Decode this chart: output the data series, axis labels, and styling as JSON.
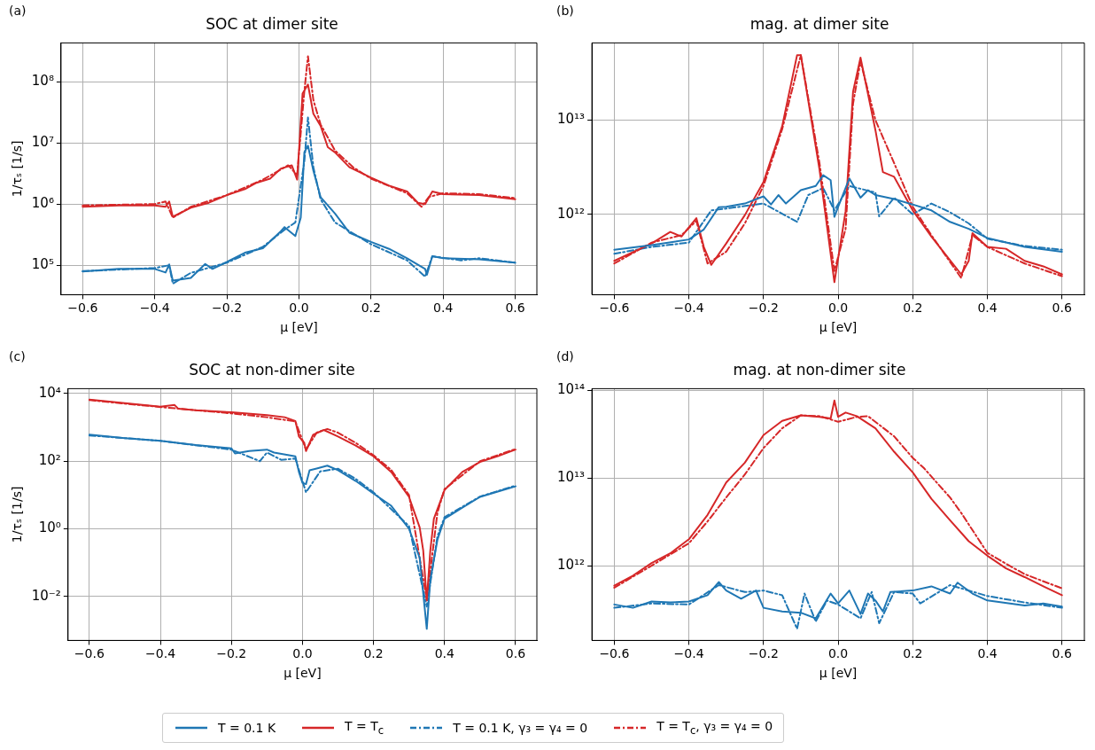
{
  "chart_data": [
    {
      "type": "line",
      "title": "SOC at dimer site",
      "xlabel": "μ [eV]",
      "ylabel": "1/τₛ [1/s]",
      "annotations": [
        "(a)"
      ],
      "log": "y",
      "grid": true,
      "legend": "bottom",
      "xlim": [
        -0.66,
        0.66
      ],
      "xticks": [
        {
          "value": -0.6,
          "label": "−0.6"
        },
        {
          "value": -0.4,
          "label": "−0.4"
        },
        {
          "value": -0.2,
          "label": "−0.2"
        },
        {
          "value": 0,
          "label": "0.0"
        },
        {
          "value": 0.2,
          "label": "0.2"
        },
        {
          "value": 0.4,
          "label": "0.4"
        },
        {
          "value": 0.6,
          "label": "0.6"
        }
      ],
      "ylim": [
        33000,
        430000000
      ],
      "yticks": [
        {
          "value": 100000,
          "label": "10⁵"
        },
        {
          "value": 1000000,
          "label": "10⁶"
        },
        {
          "value": 10000000,
          "label": "10⁷"
        },
        {
          "value": 100000000,
          "label": "10⁸"
        }
      ],
      "series": [
        {
          "name": "T = 0.1 K",
          "color": "#1f77b4",
          "line_style": "solid",
          "x": [
            -0.6,
            -0.5,
            -0.4,
            -0.37,
            -0.36,
            -0.35,
            -0.3,
            -0.26,
            -0.24,
            -0.2,
            -0.15,
            -0.1,
            -0.05,
            -0.04,
            -0.01,
            0.005,
            0.015,
            0.025,
            0.04,
            0.06,
            0.1,
            0.14,
            0.2,
            0.25,
            0.3,
            0.35,
            0.355,
            0.37,
            0.4,
            0.5,
            0.6
          ],
          "values": [
            79000,
            87000,
            87000,
            76000,
            103000,
            56000,
            62000,
            105000,
            87000,
            113000,
            160000,
            190000,
            360000,
            420000,
            300000,
            600000,
            7000000,
            9000000,
            3500000,
            1300000,
            700000,
            340000,
            240000,
            185000,
            130000,
            87000,
            70000,
            140000,
            130000,
            125000,
            110000
          ]
        },
        {
          "name": "T = T$_{c}$",
          "color": "#d62728",
          "line_style": "solid",
          "x": [
            -0.6,
            -0.5,
            -0.4,
            -0.37,
            -0.36,
            -0.35,
            -0.3,
            -0.25,
            -0.2,
            -0.15,
            -0.12,
            -0.08,
            -0.05,
            -0.02,
            -0.005,
            0.01,
            0.025,
            0.04,
            0.06,
            0.08,
            0.1,
            0.14,
            0.2,
            0.25,
            0.3,
            0.33,
            0.35,
            0.37,
            0.4,
            0.5,
            0.6
          ],
          "values": [
            900000,
            950000,
            950000,
            900000,
            1100000,
            620000,
            870000,
            1050000,
            1400000,
            1750000,
            2200000,
            2600000,
            3800000,
            4300000,
            2500000,
            64000000,
            90000000,
            30000000,
            19000000,
            8500000,
            7000000,
            4000000,
            2700000,
            2000000,
            1600000,
            1050000,
            1000000,
            1600000,
            1450000,
            1400000,
            1200000
          ]
        },
        {
          "name": "T = 0.1 K, γ₃ = γ₄ = 0",
          "color": "#1f77b4",
          "line_style": "dashdot",
          "x": [
            -0.6,
            -0.4,
            -0.36,
            -0.35,
            -0.3,
            -0.2,
            -0.1,
            -0.04,
            -0.01,
            0.015,
            0.025,
            0.04,
            0.06,
            0.1,
            0.2,
            0.3,
            0.35,
            0.37,
            0.45,
            0.5,
            0.6
          ],
          "values": [
            80000,
            90000,
            100000,
            50000,
            75000,
            110000,
            200000,
            380000,
            500000,
            5000000,
            26000000,
            4000000,
            1200000,
            500000,
            220000,
            120000,
            65000,
            140000,
            120000,
            130000,
            110000
          ]
        },
        {
          "name": "T = T$_{c}$, γ₃ = γ₄ = 0",
          "color": "#d62728",
          "line_style": "dashdot",
          "x": [
            -0.6,
            -0.4,
            -0.37,
            -0.35,
            -0.3,
            -0.2,
            -0.1,
            -0.03,
            -0.005,
            0.015,
            0.025,
            0.04,
            0.06,
            0.1,
            0.15,
            0.2,
            0.3,
            0.34,
            0.36,
            0.4,
            0.5,
            0.6
          ],
          "values": [
            950000,
            1000000,
            1100000,
            600000,
            900000,
            1400000,
            2500000,
            4300000,
            3000000,
            70000000,
            260000000,
            50000000,
            20000000,
            7500000,
            4000000,
            2600000,
            1500000,
            900000,
            1300000,
            1500000,
            1450000,
            1250000
          ]
        }
      ]
    },
    {
      "type": "line",
      "title": "mag. at dimer site",
      "xlabel": "μ [eV]",
      "annotations": [
        "(b)"
      ],
      "log": "y",
      "grid": true,
      "xlim": [
        -0.66,
        0.66
      ],
      "xticks": [
        {
          "value": -0.6,
          "label": "−0.6"
        },
        {
          "value": -0.4,
          "label": "−0.4"
        },
        {
          "value": -0.2,
          "label": "−0.2"
        },
        {
          "value": 0,
          "label": "0.0"
        },
        {
          "value": 0.2,
          "label": "0.2"
        },
        {
          "value": 0.4,
          "label": "0.4"
        },
        {
          "value": 0.6,
          "label": "0.6"
        }
      ],
      "ylim": [
        140000000000,
        66000000000000
      ],
      "yticks": [
        {
          "value": 1000000000000,
          "label": "10¹²"
        },
        {
          "value": 10000000000000,
          "label": "10¹³"
        }
      ],
      "series": [
        {
          "color": "#1f77b4",
          "line_style": "solid",
          "x": [
            -0.6,
            -0.5,
            -0.4,
            -0.36,
            -0.32,
            -0.3,
            -0.25,
            -0.2,
            -0.18,
            -0.16,
            -0.14,
            -0.1,
            -0.06,
            -0.04,
            -0.02,
            -0.01,
            0.0,
            0.03,
            0.06,
            0.08,
            0.1,
            0.15,
            0.2,
            0.25,
            0.3,
            0.35,
            0.4,
            0.5,
            0.6
          ],
          "values": [
            420000000000,
            470000000000,
            540000000000,
            690000000000,
            1190000000000,
            1200000000000,
            1300000000000,
            1550000000000,
            1270000000000,
            1600000000000,
            1300000000000,
            1800000000000,
            2000000000000,
            2600000000000,
            2300000000000,
            940000000000,
            1200000000000,
            2400000000000,
            1500000000000,
            1800000000000,
            1600000000000,
            1450000000000,
            1270000000000,
            1100000000000,
            830000000000,
            700000000000,
            560000000000,
            450000000000,
            400000000000
          ]
        },
        {
          "color": "#d62728",
          "line_style": "solid",
          "x": [
            -0.6,
            -0.5,
            -0.45,
            -0.42,
            -0.38,
            -0.36,
            -0.34,
            -0.3,
            -0.25,
            -0.2,
            -0.15,
            -0.11,
            -0.1,
            -0.05,
            -0.01,
            0.02,
            0.04,
            0.06,
            0.1,
            0.12,
            0.15,
            0.2,
            0.25,
            0.33,
            0.35,
            0.36,
            0.4,
            0.45,
            0.5,
            0.55,
            0.6
          ],
          "values": [
            320000000000,
            490000000000,
            650000000000,
            580000000000,
            910000000000,
            450000000000,
            290000000000,
            490000000000,
            980000000000,
            2200000000000,
            8600000000000,
            49000000000000,
            49000000000000,
            3000000000000,
            190000000000,
            1080000000000,
            20000000000000,
            46000000000000,
            7800000000000,
            2800000000000,
            2500000000000,
            1100000000000,
            580000000000,
            230000000000,
            320000000000,
            630000000000,
            450000000000,
            430000000000,
            320000000000,
            280000000000,
            230000000000
          ]
        },
        {
          "color": "#1f77b4",
          "line_style": "dashdot",
          "x": [
            -0.6,
            -0.5,
            -0.4,
            -0.34,
            -0.3,
            -0.2,
            -0.11,
            -0.08,
            -0.04,
            -0.01,
            0.03,
            0.1,
            0.11,
            0.15,
            0.2,
            0.25,
            0.3,
            0.35,
            0.4,
            0.5,
            0.6
          ],
          "values": [
            380000000000,
            450000000000,
            500000000000,
            1100000000000,
            1150000000000,
            1300000000000,
            830000000000,
            1600000000000,
            1900000000000,
            1100000000000,
            2000000000000,
            1700000000000,
            950000000000,
            1500000000000,
            1000000000000,
            1300000000000,
            1050000000000,
            800000000000,
            550000000000,
            460000000000,
            420000000000
          ]
        },
        {
          "color": "#d62728",
          "line_style": "dashdot",
          "x": [
            -0.6,
            -0.5,
            -0.42,
            -0.38,
            -0.35,
            -0.3,
            -0.25,
            -0.2,
            -0.15,
            -0.1,
            -0.05,
            -0.01,
            0.02,
            0.04,
            0.06,
            0.1,
            0.15,
            0.2,
            0.25,
            0.33,
            0.36,
            0.4,
            0.5,
            0.6
          ],
          "values": [
            300000000000,
            500000000000,
            600000000000,
            850000000000,
            300000000000,
            400000000000,
            800000000000,
            2000000000000,
            8000000000000,
            49000000000000,
            3500000000000,
            250000000000,
            700000000000,
            15000000000000,
            42000000000000,
            10000000000000,
            3500000000000,
            1200000000000,
            600000000000,
            210000000000,
            600000000000,
            450000000000,
            300000000000,
            220000000000
          ]
        }
      ]
    },
    {
      "type": "line",
      "title": "SOC at non-dimer site",
      "xlabel": "μ [eV]",
      "ylabel": "1/τₛ [1/s]",
      "annotations": [
        "(c)"
      ],
      "log": "y",
      "grid": true,
      "xlim": [
        -0.66,
        0.66
      ],
      "xticks": [
        {
          "value": -0.6,
          "label": "−0.6"
        },
        {
          "value": -0.4,
          "label": "−0.4"
        },
        {
          "value": -0.2,
          "label": "−0.2"
        },
        {
          "value": 0,
          "label": "0.0"
        },
        {
          "value": 0.2,
          "label": "0.2"
        },
        {
          "value": 0.4,
          "label": "0.4"
        },
        {
          "value": 0.6,
          "label": "0.6"
        }
      ],
      "ylim": [
        0.0005,
        14000
      ],
      "yticks": [
        {
          "value": 0.01,
          "label": "10⁻²"
        },
        {
          "value": 1,
          "label": "10⁰"
        },
        {
          "value": 100,
          "label": "10²"
        },
        {
          "value": 10000,
          "label": "10⁴"
        }
      ],
      "series": [
        {
          "color": "#1f77b4",
          "line_style": "solid",
          "x": [
            -0.6,
            -0.5,
            -0.4,
            -0.3,
            -0.2,
            -0.19,
            -0.15,
            -0.1,
            -0.08,
            -0.02,
            -0.01,
            0.0,
            0.01,
            0.02,
            0.04,
            0.07,
            0.1,
            0.15,
            0.2,
            0.25,
            0.3,
            0.33,
            0.35,
            0.36,
            0.38,
            0.4,
            0.45,
            0.5,
            0.55,
            0.6
          ],
          "values": [
            610,
            480,
            400,
            300,
            240,
            170,
            200,
            220,
            180,
            140,
            48,
            23,
            21,
            54,
            61,
            74,
            54,
            26,
            11,
            4.8,
            1.0,
            0.14,
            0.0011,
            0.032,
            0.47,
            2.0,
            4.2,
            8.8,
            12.6,
            18
          ]
        },
        {
          "color": "#d62728",
          "line_style": "solid",
          "x": [
            -0.6,
            -0.5,
            -0.4,
            -0.36,
            -0.35,
            -0.3,
            -0.2,
            -0.1,
            -0.05,
            -0.02,
            -0.01,
            0.005,
            0.01,
            0.03,
            0.06,
            0.1,
            0.15,
            0.2,
            0.25,
            0.3,
            0.33,
            0.34,
            0.35,
            0.36,
            0.37,
            0.4,
            0.45,
            0.5,
            0.55,
            0.6
          ],
          "values": [
            6600,
            5200,
            4100,
            4600,
            3600,
            3200,
            2800,
            2300,
            2000,
            1550,
            540,
            350,
            200,
            610,
            840,
            540,
            290,
            140,
            48,
            8.8,
            1.1,
            0.23,
            0.0076,
            0.23,
            2.0,
            14,
            48,
            95,
            140,
            220
          ]
        },
        {
          "color": "#1f77b4",
          "line_style": "dashdot",
          "x": [
            -0.6,
            -0.4,
            -0.2,
            -0.12,
            -0.1,
            -0.06,
            -0.02,
            0.01,
            0.05,
            0.1,
            0.15,
            0.2,
            0.3,
            0.35,
            0.38,
            0.4,
            0.5,
            0.6
          ],
          "values": [
            580,
            400,
            220,
            100,
            180,
            110,
            120,
            12,
            50,
            60,
            30,
            12,
            1.2,
            0.005,
            0.6,
            2.2,
            9,
            19
          ]
        },
        {
          "color": "#d62728",
          "line_style": "dashdot",
          "x": [
            -0.6,
            -0.4,
            -0.2,
            -0.1,
            -0.02,
            0.01,
            0.04,
            0.07,
            0.1,
            0.15,
            0.2,
            0.25,
            0.3,
            0.35,
            0.38,
            0.4,
            0.5,
            0.6
          ],
          "values": [
            6400,
            4000,
            2600,
            2000,
            1500,
            220,
            700,
            900,
            700,
            350,
            150,
            55,
            10,
            0.008,
            3,
            15,
            100,
            230
          ]
        }
      ]
    },
    {
      "type": "line",
      "title": "mag. at non-dimer site",
      "xlabel": "μ [eV]",
      "annotations": [
        "(d)"
      ],
      "log": "y",
      "grid": true,
      "xlim": [
        -0.66,
        0.66
      ],
      "xticks": [
        {
          "value": -0.6,
          "label": "−0.6"
        },
        {
          "value": -0.4,
          "label": "−0.4"
        },
        {
          "value": -0.2,
          "label": "−0.2"
        },
        {
          "value": 0,
          "label": "0.0"
        },
        {
          "value": 0.2,
          "label": "0.2"
        },
        {
          "value": 0.4,
          "label": "0.4"
        },
        {
          "value": 0.6,
          "label": "0.6"
        }
      ],
      "ylim": [
        140000000000,
        105000000000000
      ],
      "yticks": [
        {
          "value": 1000000000000,
          "label": "10¹²"
        },
        {
          "value": 10000000000000,
          "label": "10¹³"
        },
        {
          "value": 100000000000000,
          "label": "10¹⁴"
        }
      ],
      "series": [
        {
          "color": "#1f77b4",
          "line_style": "solid",
          "x": [
            -0.6,
            -0.55,
            -0.5,
            -0.45,
            -0.4,
            -0.35,
            -0.32,
            -0.3,
            -0.26,
            -0.22,
            -0.2,
            -0.15,
            -0.1,
            -0.06,
            -0.02,
            0.0,
            0.03,
            0.06,
            0.08,
            0.1,
            0.12,
            0.14,
            0.2,
            0.25,
            0.3,
            0.32,
            0.36,
            0.4,
            0.5,
            0.55,
            0.6
          ],
          "values": [
            360000000000,
            330000000000,
            390000000000,
            380000000000,
            390000000000,
            460000000000,
            650000000000,
            520000000000,
            420000000000,
            520000000000,
            330000000000,
            300000000000,
            290000000000,
            250000000000,
            480000000000,
            370000000000,
            520000000000,
            280000000000,
            480000000000,
            400000000000,
            300000000000,
            500000000000,
            520000000000,
            580000000000,
            480000000000,
            640000000000,
            480000000000,
            400000000000,
            350000000000,
            370000000000,
            340000000000
          ]
        },
        {
          "color": "#d62728",
          "line_style": "solid",
          "x": [
            -0.6,
            -0.55,
            -0.5,
            -0.45,
            -0.4,
            -0.35,
            -0.32,
            -0.3,
            -0.25,
            -0.2,
            -0.15,
            -0.1,
            -0.05,
            -0.02,
            -0.01,
            0.0,
            0.02,
            0.05,
            0.1,
            0.15,
            0.2,
            0.25,
            0.3,
            0.35,
            0.4,
            0.45,
            0.5,
            0.55,
            0.6
          ],
          "values": [
            590000000000,
            770000000000,
            1070000000000,
            1380000000000,
            2000000000000,
            3800000000000,
            6300000000000,
            8900000000000,
            15000000000000,
            31000000000000,
            45000000000000,
            52000000000000,
            50000000000000,
            48000000000000,
            77000000000000,
            50000000000000,
            56000000000000,
            51000000000000,
            37000000000000,
            20000000000000,
            11600000000000,
            5800000000000,
            3300000000000,
            1900000000000,
            1300000000000,
            930000000000,
            740000000000,
            580000000000,
            460000000000
          ]
        },
        {
          "color": "#1f77b4",
          "line_style": "dashdot",
          "x": [
            -0.6,
            -0.5,
            -0.4,
            -0.32,
            -0.25,
            -0.2,
            -0.15,
            -0.11,
            -0.09,
            -0.06,
            -0.03,
            0.0,
            0.06,
            0.09,
            0.11,
            0.15,
            0.2,
            0.22,
            0.3,
            0.4,
            0.5,
            0.6
          ],
          "values": [
            330000000000,
            370000000000,
            360000000000,
            600000000000,
            500000000000,
            520000000000,
            460000000000,
            190000000000,
            480000000000,
            230000000000,
            400000000000,
            360000000000,
            250000000000,
            500000000000,
            220000000000,
            500000000000,
            480000000000,
            370000000000,
            600000000000,
            450000000000,
            380000000000,
            330000000000
          ]
        },
        {
          "color": "#d62728",
          "line_style": "dashdot",
          "x": [
            -0.6,
            -0.5,
            -0.4,
            -0.35,
            -0.3,
            -0.25,
            -0.2,
            -0.15,
            -0.1,
            -0.05,
            0.0,
            0.05,
            0.08,
            0.15,
            0.2,
            0.23,
            0.3,
            0.33,
            0.4,
            0.45,
            0.5,
            0.6
          ],
          "values": [
            560000000000,
            1000000000000,
            1800000000000,
            3200000000000,
            6000000000000,
            11000000000000,
            22000000000000,
            37000000000000,
            52000000000000,
            51000000000000,
            44000000000000,
            50000000000000,
            51000000000000,
            30000000000000,
            17000000000000,
            13000000000000,
            6000000000000,
            4000000000000,
            1400000000000,
            1050000000000,
            800000000000,
            550000000000
          ]
        }
      ]
    }
  ]
}
